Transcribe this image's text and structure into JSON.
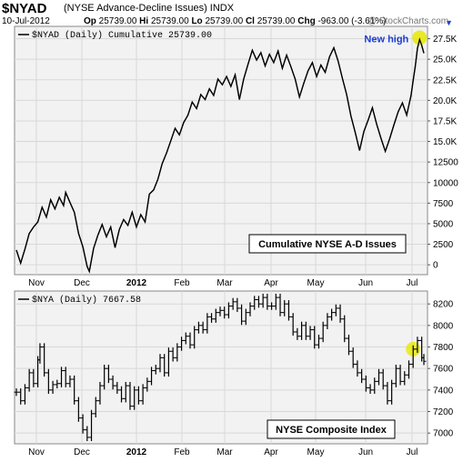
{
  "header": {
    "symbol": "$NYAD",
    "name": "(NYSE Advance-Decline Issues)",
    "exchange": "INDX",
    "date": "10-Jul-2012",
    "ohlc": [
      {
        "label": "Op",
        "value": "25739.00"
      },
      {
        "label": "Hi",
        "value": "25739.00"
      },
      {
        "label": "Lo",
        "value": "25739.00"
      },
      {
        "label": "Cl",
        "value": "25739.00"
      },
      {
        "label": "Chg",
        "value": "-963.00 (-3.61%)"
      }
    ],
    "arrow": "▼",
    "watermark": "@ StockCharts.com"
  },
  "colors": {
    "line": "#000000",
    "highlight": "#e8e800",
    "annotation_blue": "#1a3cd6",
    "grid": "#d8d8d8",
    "panel_bg": "#f2f2f2"
  },
  "chart_data": [
    {
      "type": "line",
      "legend": "$NYAD (Daily) Cumulative 25739.00",
      "annotation": "Cumulative NYSE A-D Issues",
      "callout": "New high",
      "x_ticks": [
        "Nov",
        "Dec",
        "2012",
        "Feb",
        "Mar",
        "Apr",
        "May",
        "Jun",
        "Jul"
      ],
      "y_ticks": [
        "0",
        "2500",
        "5000",
        "7500",
        "10000",
        "12500",
        "15.0K",
        "17.5K",
        "20.0K",
        "22.5K",
        "25.0K",
        "27.5K"
      ],
      "ylim": [
        -1200,
        29000
      ],
      "x_range": [
        0,
        190
      ],
      "points": [
        [
          0,
          1800
        ],
        [
          2,
          200
        ],
        [
          4,
          1900
        ],
        [
          6,
          3800
        ],
        [
          8,
          4600
        ],
        [
          10,
          5200
        ],
        [
          12,
          7000
        ],
        [
          14,
          5800
        ],
        [
          16,
          7900
        ],
        [
          18,
          6800
        ],
        [
          20,
          8200
        ],
        [
          22,
          7200
        ],
        [
          23,
          8800
        ],
        [
          25,
          7600
        ],
        [
          27,
          6400
        ],
        [
          29,
          3800
        ],
        [
          31,
          2200
        ],
        [
          33,
          -200
        ],
        [
          34,
          -800
        ],
        [
          36,
          2000
        ],
        [
          38,
          3600
        ],
        [
          40,
          4900
        ],
        [
          42,
          3400
        ],
        [
          44,
          4600
        ],
        [
          46,
          2100
        ],
        [
          48,
          4300
        ],
        [
          50,
          5500
        ],
        [
          52,
          4800
        ],
        [
          54,
          6400
        ],
        [
          56,
          4600
        ],
        [
          58,
          6100
        ],
        [
          60,
          5200
        ],
        [
          62,
          8600
        ],
        [
          64,
          9100
        ],
        [
          66,
          10400
        ],
        [
          68,
          12300
        ],
        [
          70,
          13600
        ],
        [
          72,
          15100
        ],
        [
          74,
          16600
        ],
        [
          76,
          15800
        ],
        [
          78,
          17300
        ],
        [
          80,
          18200
        ],
        [
          82,
          19800
        ],
        [
          84,
          19000
        ],
        [
          86,
          20700
        ],
        [
          88,
          20100
        ],
        [
          90,
          21400
        ],
        [
          92,
          20600
        ],
        [
          94,
          22600
        ],
        [
          96,
          21900
        ],
        [
          98,
          22900
        ],
        [
          100,
          21700
        ],
        [
          102,
          23100
        ],
        [
          104,
          20100
        ],
        [
          106,
          22600
        ],
        [
          108,
          24400
        ],
        [
          110,
          26100
        ],
        [
          112,
          24900
        ],
        [
          114,
          25800
        ],
        [
          116,
          24200
        ],
        [
          118,
          25600
        ],
        [
          120,
          24600
        ],
        [
          122,
          26000
        ],
        [
          124,
          23900
        ],
        [
          126,
          25500
        ],
        [
          128,
          24100
        ],
        [
          130,
          22600
        ],
        [
          132,
          20400
        ],
        [
          134,
          22100
        ],
        [
          136,
          23600
        ],
        [
          138,
          24600
        ],
        [
          140,
          22900
        ],
        [
          142,
          24300
        ],
        [
          144,
          23400
        ],
        [
          146,
          25300
        ],
        [
          148,
          26400
        ],
        [
          150,
          24800
        ],
        [
          152,
          22700
        ],
        [
          154,
          20700
        ],
        [
          156,
          18100
        ],
        [
          158,
          16100
        ],
        [
          160,
          13900
        ],
        [
          162,
          16200
        ],
        [
          164,
          17600
        ],
        [
          166,
          19100
        ],
        [
          168,
          17100
        ],
        [
          170,
          15400
        ],
        [
          172,
          13800
        ],
        [
          174,
          15300
        ],
        [
          176,
          17000
        ],
        [
          178,
          18600
        ],
        [
          180,
          19700
        ],
        [
          182,
          18200
        ],
        [
          184,
          20600
        ],
        [
          185,
          22400
        ],
        [
          186,
          24200
        ],
        [
          187,
          26300
        ],
        [
          188,
          27400
        ],
        [
          189,
          26700
        ],
        [
          190,
          25739
        ]
      ]
    },
    {
      "type": "ohlc",
      "legend": "$NYA (Daily) 7667.58",
      "annotation": "NYSE Composite Index",
      "x_ticks": [
        "Nov",
        "Dec",
        "2012",
        "Feb",
        "Mar",
        "Apr",
        "May",
        "Jun",
        "Jul"
      ],
      "y_ticks": [
        "7000",
        "7200",
        "7400",
        "7600",
        "7800",
        "8000",
        "8200"
      ],
      "ylim": [
        6900,
        8320
      ],
      "x_range": [
        0,
        190
      ],
      "closes": [
        [
          0,
          7380
        ],
        [
          2,
          7300
        ],
        [
          4,
          7420
        ],
        [
          6,
          7560
        ],
        [
          8,
          7460
        ],
        [
          10,
          7680
        ],
        [
          11,
          7800
        ],
        [
          13,
          7560
        ],
        [
          15,
          7400
        ],
        [
          17,
          7450
        ],
        [
          19,
          7460
        ],
        [
          21,
          7580
        ],
        [
          23,
          7460
        ],
        [
          25,
          7500
        ],
        [
          27,
          7300
        ],
        [
          29,
          7140
        ],
        [
          31,
          7030
        ],
        [
          33,
          6960
        ],
        [
          35,
          7180
        ],
        [
          37,
          7300
        ],
        [
          39,
          7440
        ],
        [
          41,
          7600
        ],
        [
          43,
          7500
        ],
        [
          45,
          7440
        ],
        [
          47,
          7400
        ],
        [
          49,
          7320
        ],
        [
          51,
          7440
        ],
        [
          53,
          7250
        ],
        [
          55,
          7400
        ],
        [
          57,
          7300
        ],
        [
          59,
          7420
        ],
        [
          61,
          7480
        ],
        [
          63,
          7580
        ],
        [
          65,
          7600
        ],
        [
          67,
          7700
        ],
        [
          69,
          7560
        ],
        [
          71,
          7760
        ],
        [
          73,
          7700
        ],
        [
          75,
          7800
        ],
        [
          77,
          7860
        ],
        [
          79,
          7900
        ],
        [
          81,
          7820
        ],
        [
          83,
          7960
        ],
        [
          85,
          8000
        ],
        [
          87,
          7960
        ],
        [
          89,
          8080
        ],
        [
          91,
          8060
        ],
        [
          93,
          8120
        ],
        [
          95,
          8140
        ],
        [
          97,
          8100
        ],
        [
          99,
          8180
        ],
        [
          101,
          8220
        ],
        [
          103,
          8160
        ],
        [
          105,
          8040
        ],
        [
          107,
          8120
        ],
        [
          109,
          8180
        ],
        [
          111,
          8240
        ],
        [
          113,
          8200
        ],
        [
          115,
          8260
        ],
        [
          117,
          8180
        ],
        [
          119,
          8180
        ],
        [
          121,
          8260
        ],
        [
          123,
          8120
        ],
        [
          125,
          8200
        ],
        [
          127,
          8080
        ],
        [
          129,
          7940
        ],
        [
          131,
          7900
        ],
        [
          133,
          8000
        ],
        [
          135,
          7900
        ],
        [
          137,
          7960
        ],
        [
          139,
          7820
        ],
        [
          141,
          7880
        ],
        [
          143,
          8000
        ],
        [
          145,
          8080
        ],
        [
          147,
          8120
        ],
        [
          149,
          8160
        ],
        [
          151,
          8060
        ],
        [
          153,
          7880
        ],
        [
          155,
          7760
        ],
        [
          157,
          7640
        ],
        [
          159,
          7560
        ],
        [
          161,
          7500
        ],
        [
          163,
          7420
        ],
        [
          165,
          7400
        ],
        [
          167,
          7480
        ],
        [
          169,
          7560
        ],
        [
          171,
          7440
        ],
        [
          173,
          7300
        ],
        [
          175,
          7460
        ],
        [
          177,
          7600
        ],
        [
          179,
          7480
        ],
        [
          181,
          7540
        ],
        [
          183,
          7640
        ],
        [
          185,
          7780
        ],
        [
          187,
          7860
        ],
        [
          189,
          7700
        ],
        [
          190,
          7667
        ]
      ]
    }
  ]
}
